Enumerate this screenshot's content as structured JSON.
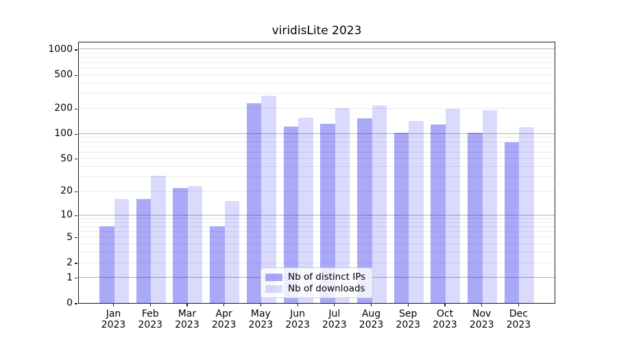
{
  "title": "viridisLite 2023",
  "colors": {
    "bar_dark": "rgba(22,22,235,0.37)",
    "bar_light": "rgba(22,22,235,0.155)",
    "grid_major": "#b0b0b0",
    "grid_minor": "#eaeaea",
    "spine": "#1a1a1a",
    "text": "#000000",
    "legend_border": "#cccccc"
  },
  "legend": {
    "items": [
      {
        "label": "Nb of distinct IPs",
        "swatch": "dark"
      },
      {
        "label": "Nb of downloads",
        "swatch": "light"
      }
    ]
  },
  "chart_data": {
    "type": "bar",
    "title": "viridisLite 2023",
    "categories": [
      "Jan 2023",
      "Feb 2023",
      "Mar 2023",
      "Apr 2023",
      "May 2023",
      "Jun 2023",
      "Jul 2023",
      "Aug 2023",
      "Sep 2023",
      "Oct 2023",
      "Nov 2023",
      "Dec 2023"
    ],
    "x_tick_line1": [
      "Jan",
      "Feb",
      "Mar",
      "Apr",
      "May",
      "Jun",
      "Jul",
      "Aug",
      "Sep",
      "Oct",
      "Nov",
      "Dec"
    ],
    "x_tick_line2": [
      "2023",
      "2023",
      "2023",
      "2023",
      "2023",
      "2023",
      "2023",
      "2023",
      "2023",
      "2023",
      "2023",
      "2023"
    ],
    "series": [
      {
        "name": "Nb of distinct IPs",
        "values": [
          7,
          16,
          22,
          7,
          230,
          122,
          131,
          151,
          103,
          128,
          103,
          79
        ]
      },
      {
        "name": "Nb of downloads",
        "values": [
          16,
          31,
          23,
          15,
          280,
          156,
          200,
          216,
          142,
          198,
          191,
          118
        ]
      }
    ],
    "xlabel": "",
    "ylabel": "",
    "y_scale": "log1p",
    "y_tick_values": [
      0,
      1,
      2,
      5,
      10,
      20,
      50,
      100,
      200,
      500,
      1000
    ],
    "y_tick_labels": [
      "0",
      "1",
      "2",
      "5",
      "10",
      "20",
      "50",
      "100",
      "200",
      "500",
      "1000"
    ],
    "y_major_gridlines": [
      1,
      10,
      100,
      1000
    ],
    "y_minor_gridlines": [
      2,
      3,
      4,
      5,
      6,
      7,
      8,
      9,
      20,
      30,
      40,
      50,
      60,
      70,
      80,
      90,
      200,
      300,
      400,
      500,
      600,
      700,
      800,
      900
    ],
    "ylim": [
      0,
      1258
    ],
    "grid": "horizontal",
    "legend_position": "lower-center"
  }
}
